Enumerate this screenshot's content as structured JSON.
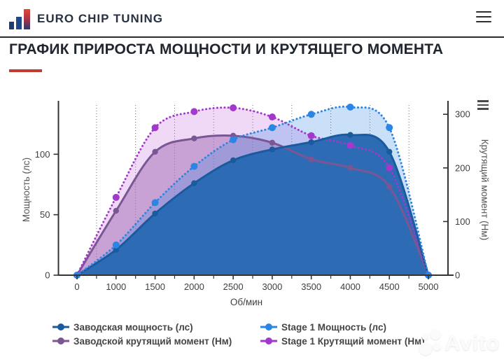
{
  "header": {
    "logo_text": "EURO CHIP TUNING"
  },
  "page": {
    "title": "ГРАФИК ПРИРОСТА МОЩНОСТИ И КРУТЯЩЕГО МОМЕНТА"
  },
  "watermark": {
    "text": "Avito"
  },
  "chart_data": {
    "type": "line",
    "title": "ГРАФИК ПРИРОСТА МОЩНОСТИ И КРУТЯЩЕГО МОМЕНТА",
    "xlabel": "Об/мин",
    "ylabel_left": "Мощность (лс)",
    "ylabel_right": "Крутящий момент (Нм)",
    "categories": [
      "0",
      "1000",
      "1500",
      "2000",
      "2500",
      "3000",
      "3500",
      "4000",
      "4500",
      "5000"
    ],
    "x": [
      0,
      1000,
      1500,
      2000,
      2500,
      3000,
      3500,
      4000,
      4500,
      5000
    ],
    "yleft_ticks": [
      0,
      50,
      100
    ],
    "yright_ticks": [
      0,
      100,
      200,
      300
    ],
    "yleft_range": [
      0,
      140
    ],
    "yright_range": [
      0,
      317
    ],
    "grid": "vertical-dotted-between-categories",
    "legend_position": "bottom-two-columns",
    "series": [
      {
        "name": "Заводская мощность (лс)",
        "axis": "left",
        "style": "solid",
        "color": "#1a5a9e",
        "fill": "#2d6cb4",
        "values": [
          0,
          21,
          51,
          76,
          95,
          104,
          110,
          116,
          102,
          0
        ]
      },
      {
        "name": "Stage 1 Мощность (лс)",
        "axis": "left",
        "style": "dotted",
        "color": "#2b85e4",
        "fill": "rgba(43,133,228,0.25)",
        "values": [
          0,
          25,
          60,
          90,
          112,
          122,
          133,
          139,
          122,
          0
        ]
      },
      {
        "name": "Заводской крутящий момент (Нм)",
        "axis": "right",
        "style": "solid",
        "color": "#7b5694",
        "fill": "rgba(152,95,172,0.45)",
        "values": [
          0,
          120,
          230,
          255,
          260,
          247,
          216,
          200,
          165,
          0
        ]
      },
      {
        "name": "Stage 1 Крутящий момент (Нм)",
        "axis": "right",
        "style": "dotted",
        "color": "#a238cc",
        "fill": "rgba(196,120,224,0.28)",
        "values": [
          0,
          145,
          275,
          305,
          312,
          295,
          260,
          242,
          200,
          0
        ]
      }
    ]
  }
}
